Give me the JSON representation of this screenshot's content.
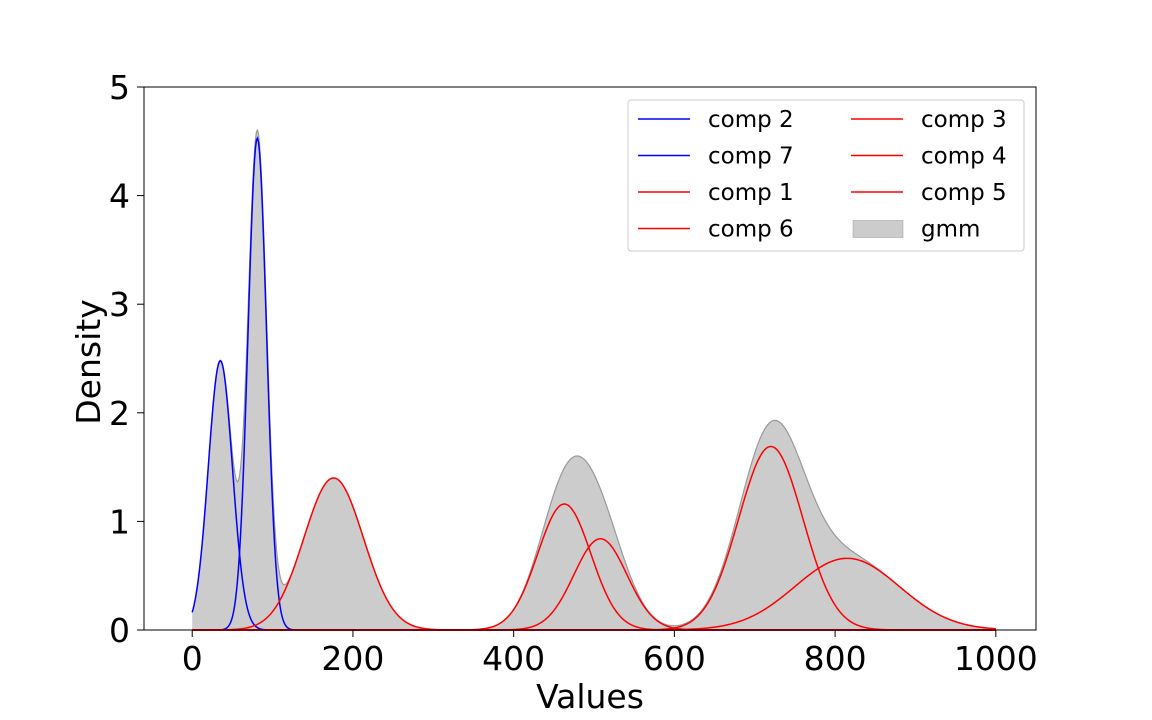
{
  "chart_data": {
    "type": "line",
    "title": "",
    "xlabel": "Values",
    "ylabel": "Density",
    "xlim": [
      -60,
      1050
    ],
    "ylim": [
      0,
      5
    ],
    "x_ticks": [
      0,
      200,
      400,
      600,
      800,
      1000
    ],
    "y_ticks": [
      0,
      1,
      2,
      3,
      4,
      5
    ],
    "x_tick_labels": [
      "0",
      "200",
      "400",
      "600",
      "800",
      "1000"
    ],
    "y_tick_labels": [
      "0",
      "1",
      "2",
      "3",
      "4",
      "5"
    ],
    "grid": false,
    "legend_position": "top-right",
    "legend_columns": 2,
    "x_range": [
      0,
      1000
    ],
    "components": [
      {
        "name": "comp 2",
        "color": "#0000ff",
        "mean": 35,
        "sd": 15,
        "peak": 2.48
      },
      {
        "name": "comp 7",
        "color": "#0000ff",
        "mean": 81,
        "sd": 11.5,
        "peak": 4.53
      },
      {
        "name": "comp 1",
        "color": "#ff0000",
        "mean": 176,
        "sd": 37,
        "peak": 1.4
      },
      {
        "name": "comp 6",
        "color": "#ff0000",
        "mean": 463,
        "sd": 33,
        "peak": 1.16
      },
      {
        "name": "comp 3",
        "color": "#ff0000",
        "mean": 508,
        "sd": 33,
        "peak": 0.84
      },
      {
        "name": "comp 4",
        "color": "#ff0000",
        "mean": 720,
        "sd": 40,
        "peak": 1.69
      },
      {
        "name": "comp 5",
        "color": "#ff0000",
        "mean": 815,
        "sd": 65,
        "peak": 0.66
      }
    ],
    "gmm": {
      "name": "gmm",
      "fill": "#cccccc",
      "edge": "#999999"
    }
  }
}
